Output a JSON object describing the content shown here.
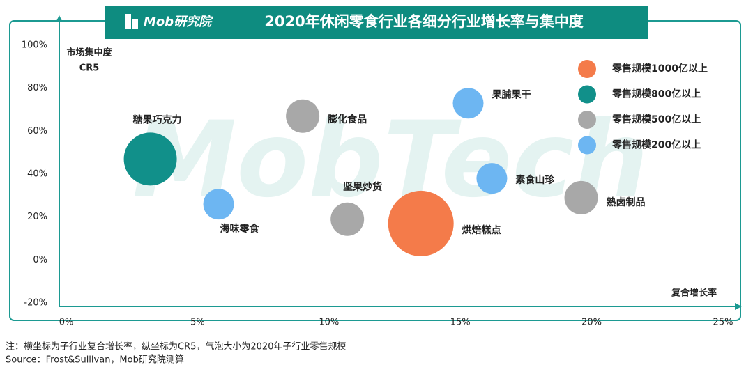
{
  "brand": "Mob研究院",
  "watermark": "MobTech",
  "chart_data": {
    "type": "bubble",
    "title": "2020年休闲零食行业各细分行业增长率与集中度",
    "y_label": [
      "市场集中度",
      "CR5"
    ],
    "x_label": "复合增长率",
    "xlim": [
      0,
      25
    ],
    "xticks": [
      {
        "value": 0,
        "label": "0%"
      },
      {
        "value": 5,
        "label": "5%"
      },
      {
        "value": 10,
        "label": "10%"
      },
      {
        "value": 15,
        "label": "15%"
      },
      {
        "value": 20,
        "label": "20%"
      },
      {
        "value": 25,
        "label": "25%"
      }
    ],
    "ylim": [
      -20,
      100
    ],
    "yticks": [
      {
        "value": -20,
        "label": "-20%"
      },
      {
        "value": 0,
        "label": "0%"
      },
      {
        "value": 20,
        "label": "20%"
      },
      {
        "value": 40,
        "label": "40%"
      },
      {
        "value": 60,
        "label": "60%"
      },
      {
        "value": 80,
        "label": "80%"
      },
      {
        "value": 100,
        "label": "100%"
      }
    ],
    "series": [
      {
        "name": "零售规模1000亿以上",
        "color": "#f47b4a",
        "labels": [
          "烘焙糕点"
        ],
        "x": [
          13.5
        ],
        "values": [
          17
        ]
      },
      {
        "name": "零售规模800亿以上",
        "color": "#11908a",
        "labels": [
          "糖果巧克力"
        ],
        "x": [
          3.2
        ],
        "values": [
          47
        ]
      },
      {
        "name": "零售规模500亿以上",
        "color": "#a8a8a8",
        "labels": [
          "膨化食品",
          "坚果炒货",
          "熟卤制品"
        ],
        "x": [
          9.0,
          10.7,
          19.6
        ],
        "values": [
          67,
          19,
          29
        ]
      },
      {
        "name": "零售规模200亿以上",
        "color": "#6db6f2",
        "labels": [
          "海味零食",
          "果脯果干",
          "素食山珍"
        ],
        "x": [
          5.8,
          15.3,
          16.2
        ],
        "values": [
          26,
          73,
          38
        ]
      }
    ],
    "notes": [
      "注：横坐标为子行业复合增长率，纵坐标为CR5，气泡大小为2020年子行业零售规模",
      "Source：Frost&Sullivan，Mob研究院测算"
    ]
  }
}
